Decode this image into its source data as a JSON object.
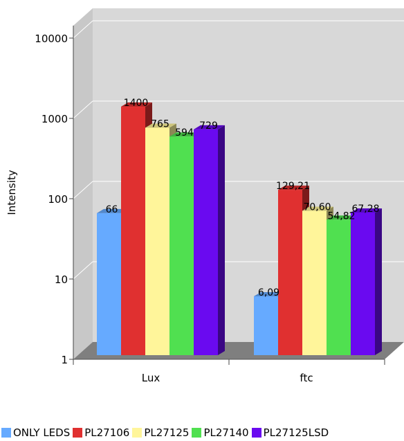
{
  "chart_data": {
    "type": "bar",
    "title": "",
    "xlabel": "",
    "ylabel": "Intensity",
    "y_scale": "log",
    "ylim": [
      1,
      10000
    ],
    "y_ticks": [
      "1",
      "10",
      "100",
      "1000",
      "10000"
    ],
    "grid": true,
    "legend_position": "bottom",
    "categories": [
      "Lux",
      "ftc"
    ],
    "series": [
      {
        "name": "ONLY LEDS",
        "color": "#66aaff",
        "values": [
          66,
          6.09
        ],
        "labels": [
          "66",
          "6,09"
        ]
      },
      {
        "name": "PL27106",
        "color": "#e03030",
        "values": [
          1400,
          129.21
        ],
        "labels": [
          "1400",
          "129,21"
        ]
      },
      {
        "name": "PL27125",
        "color": "#fff59a",
        "values": [
          765,
          70.6
        ],
        "labels": [
          "765",
          "70,60"
        ]
      },
      {
        "name": "PL27140",
        "color": "#50e050",
        "values": [
          594,
          54.82
        ],
        "labels": [
          "594",
          "54,82"
        ]
      },
      {
        "name": "PL27125LSD",
        "color": "#6a0af0",
        "values": [
          729,
          67.28
        ],
        "labels": [
          "729",
          "67,28"
        ]
      }
    ]
  }
}
